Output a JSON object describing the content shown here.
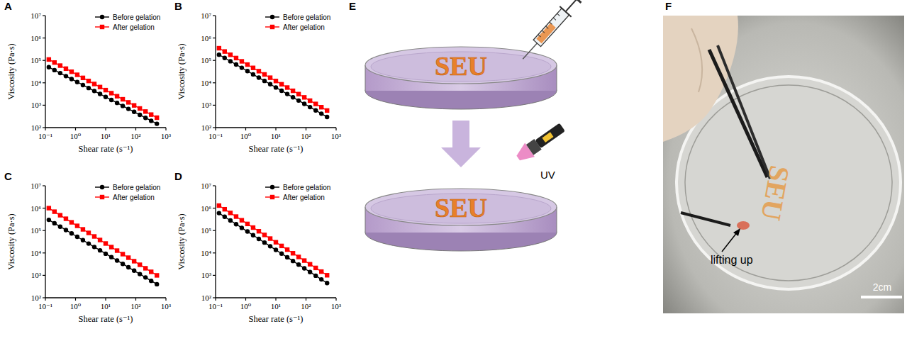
{
  "chart_data": [
    {
      "type": "line",
      "panel_label": "A",
      "x_label": "Shear rate (s⁻¹)",
      "y_label": "Viscosity (Pa·s)",
      "log": true,
      "grid": false,
      "legend": "upper right",
      "x": [
        0.13,
        0.2,
        0.31,
        0.48,
        0.74,
        1.14,
        1.76,
        2.72,
        4.2,
        6.5,
        10,
        15.5,
        23.9,
        36.9,
        57,
        88,
        136,
        210,
        324,
        500
      ],
      "xlim": [
        0.1,
        1000
      ],
      "xticks": [
        {
          "value": 0.1,
          "label": "10⁻¹"
        },
        {
          "value": 1,
          "label": "10⁰"
        },
        {
          "value": 10,
          "label": "10¹"
        },
        {
          "value": 100,
          "label": "10²"
        },
        {
          "value": 1000,
          "label": "10³"
        }
      ],
      "ylim": [
        100,
        10000000
      ],
      "yticks": [
        {
          "value": 100,
          "label": "10²"
        },
        {
          "value": 1000,
          "label": "10³"
        },
        {
          "value": 10000,
          "label": "10⁴"
        },
        {
          "value": 100000,
          "label": "10⁵"
        },
        {
          "value": 1000000,
          "label": "10⁶"
        },
        {
          "value": 10000000,
          "label": "10⁷"
        }
      ],
      "series": [
        {
          "name": "Before gelation",
          "color": "#000000",
          "marker": "circle",
          "values": [
            50000,
            36800,
            27100,
            19900,
            14700,
            10800,
            7950,
            5850,
            4310,
            3170,
            2330,
            1720,
            1265,
            931,
            685,
            504,
            371,
            273,
            201,
            148
          ]
        },
        {
          "name": "After gelation",
          "color": "#ff0000",
          "marker": "square",
          "values": [
            110000,
            80300,
            58600,
            42800,
            31200,
            22800,
            16600,
            12100,
            8860,
            6470,
            4720,
            3450,
            2520,
            1840,
            1340,
            980,
            715,
            522,
            381,
            278
          ]
        }
      ]
    },
    {
      "type": "line",
      "panel_label": "B",
      "x_label": "Shear rate (s⁻¹)",
      "y_label": "Viscosity (Pa·s)",
      "log": true,
      "grid": false,
      "legend": "upper right",
      "x": [
        0.13,
        0.2,
        0.31,
        0.48,
        0.74,
        1.14,
        1.76,
        2.72,
        4.2,
        6.5,
        10,
        15.5,
        23.9,
        36.9,
        57,
        88,
        136,
        210,
        324,
        500
      ],
      "xlim": [
        0.1,
        1000
      ],
      "xticks": [
        {
          "value": 0.1,
          "label": "10⁻¹"
        },
        {
          "value": 1,
          "label": "10⁰"
        },
        {
          "value": 10,
          "label": "10¹"
        },
        {
          "value": 100,
          "label": "10²"
        },
        {
          "value": 1000,
          "label": "10³"
        }
      ],
      "ylim": [
        100,
        10000000
      ],
      "yticks": [
        {
          "value": 100,
          "label": "10²"
        },
        {
          "value": 1000,
          "label": "10³"
        },
        {
          "value": 10000,
          "label": "10⁴"
        },
        {
          "value": 100000,
          "label": "10⁵"
        },
        {
          "value": 1000000,
          "label": "10⁶"
        },
        {
          "value": 10000000,
          "label": "10⁷"
        }
      ],
      "series": [
        {
          "name": "Before gelation",
          "color": "#000000",
          "marker": "circle",
          "values": [
            180000,
            128500,
            91700,
            65500,
            46800,
            33400,
            23800,
            17000,
            12150,
            8670,
            6190,
            4420,
            3160,
            2250,
            1610,
            1150,
            820,
            586,
            418,
            299
          ]
        },
        {
          "name": "After gelation",
          "color": "#ff0000",
          "marker": "square",
          "values": [
            350000,
            250000,
            178500,
            127400,
            91000,
            65000,
            46400,
            33100,
            23650,
            16880,
            12050,
            8610,
            6150,
            4390,
            3130,
            2240,
            1600,
            1140,
            814,
            581
          ]
        }
      ]
    },
    {
      "type": "line",
      "panel_label": "C",
      "x_label": "Shear rate (s⁻¹)",
      "y_label": "Viscosity (Pa·s)",
      "log": true,
      "grid": false,
      "legend": "upper right",
      "x": [
        0.13,
        0.2,
        0.31,
        0.48,
        0.74,
        1.14,
        1.76,
        2.72,
        4.2,
        6.5,
        10,
        15.5,
        23.9,
        36.9,
        57,
        88,
        136,
        210,
        324,
        500
      ],
      "xlim": [
        0.1,
        1000
      ],
      "xticks": [
        {
          "value": 0.1,
          "label": "10⁻¹"
        },
        {
          "value": 1,
          "label": "10⁰"
        },
        {
          "value": 10,
          "label": "10¹"
        },
        {
          "value": 100,
          "label": "10²"
        },
        {
          "value": 1000,
          "label": "10³"
        }
      ],
      "ylim": [
        100,
        10000000
      ],
      "yticks": [
        {
          "value": 100,
          "label": "10²"
        },
        {
          "value": 1000,
          "label": "10³"
        },
        {
          "value": 10000,
          "label": "10⁴"
        },
        {
          "value": 100000,
          "label": "10⁵"
        },
        {
          "value": 1000000,
          "label": "10⁶"
        },
        {
          "value": 10000000,
          "label": "10⁷"
        }
      ],
      "series": [
        {
          "name": "Before gelation",
          "color": "#000000",
          "marker": "circle",
          "values": [
            300000,
            211800,
            149500,
            105600,
            74500,
            52600,
            37200,
            26200,
            18500,
            13070,
            9230,
            6520,
            4600,
            3250,
            2290,
            1620,
            1140,
            806,
            569,
            402
          ]
        },
        {
          "name": "After gelation",
          "color": "#ff0000",
          "marker": "square",
          "values": [
            1000000,
            695000,
            483000,
            336000,
            233000,
            162000,
            113000,
            78500,
            54600,
            37900,
            26400,
            18300,
            12700,
            8850,
            6150,
            4280,
            2970,
            2070,
            1440,
            998
          ]
        }
      ]
    },
    {
      "type": "line",
      "panel_label": "D",
      "x_label": "Shear rate (s⁻¹)",
      "y_label": "Viscosity (Pa·s)",
      "log": true,
      "grid": false,
      "legend": "upper right",
      "x": [
        0.13,
        0.2,
        0.31,
        0.48,
        0.74,
        1.14,
        1.76,
        2.72,
        4.2,
        6.5,
        10,
        15.5,
        23.9,
        36.9,
        57,
        88,
        136,
        210,
        324,
        500
      ],
      "xlim": [
        0.1,
        1000
      ],
      "xticks": [
        {
          "value": 0.1,
          "label": "10⁻¹"
        },
        {
          "value": 1,
          "label": "10⁰"
        },
        {
          "value": 10,
          "label": "10¹"
        },
        {
          "value": 100,
          "label": "10²"
        },
        {
          "value": 1000,
          "label": "10³"
        }
      ],
      "ylim": [
        100,
        10000000
      ],
      "yticks": [
        {
          "value": 100,
          "label": "10²"
        },
        {
          "value": 1000,
          "label": "10³"
        },
        {
          "value": 10000,
          "label": "10⁴"
        },
        {
          "value": 100000,
          "label": "10⁵"
        },
        {
          "value": 1000000,
          "label": "10⁶"
        },
        {
          "value": 10000000,
          "label": "10⁷"
        }
      ],
      "series": [
        {
          "name": "Before gelation",
          "color": "#000000",
          "marker": "circle",
          "values": [
            600000,
            411000,
            281500,
            192800,
            132100,
            90500,
            62000,
            42400,
            29100,
            19900,
            13630,
            9340,
            6400,
            4380,
            3000,
            2060,
            1410,
            964,
            661,
            453
          ]
        },
        {
          "name": "After gelation",
          "color": "#ff0000",
          "marker": "square",
          "values": [
            1300000,
            892000,
            612000,
            420000,
            288000,
            197500,
            135500,
            93000,
            63800,
            43800,
            30000,
            20600,
            14100,
            9690,
            6650,
            4560,
            3130,
            2150,
            1470,
            1010
          ]
        }
      ]
    }
  ],
  "diagram": {
    "panel_label": "E",
    "dish_text": "SEU",
    "light_label": "UV"
  },
  "photo": {
    "panel_label": "F",
    "dish_text": "SEU",
    "annotation": "lifting up",
    "scale_bar": "2cm"
  }
}
